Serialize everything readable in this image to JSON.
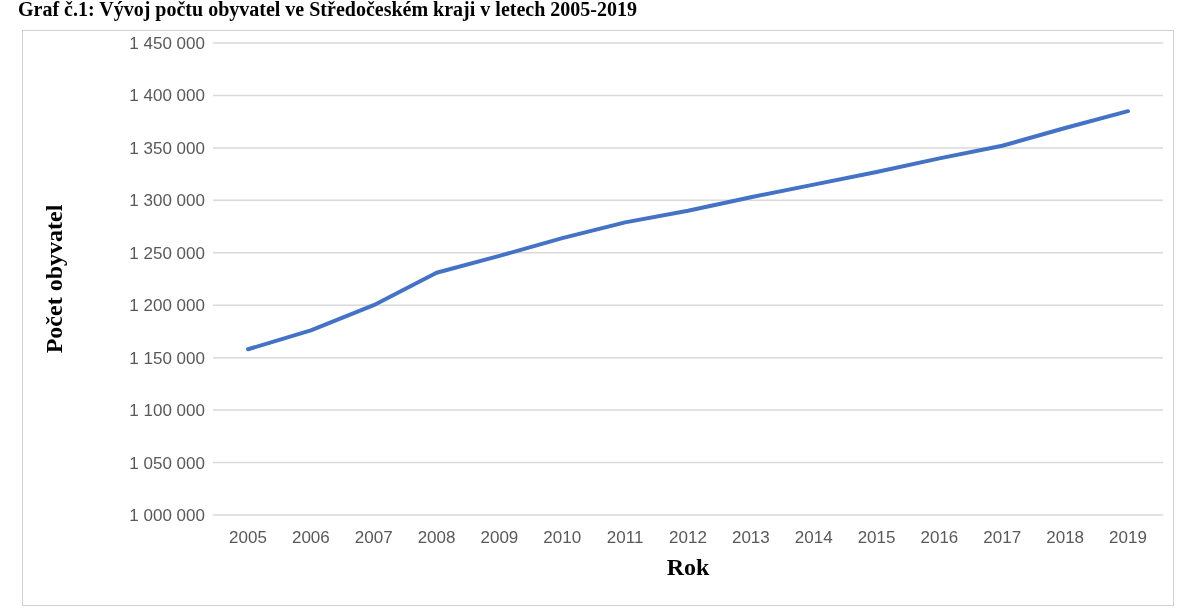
{
  "chart_data": {
    "type": "line",
    "title": "Graf č.1: Vývoj počtu obyvatel ve Středočeském kraji v letech 2005-2019",
    "xlabel": "Rok",
    "ylabel": "Počet obyvatel",
    "categories": [
      "2005",
      "2006",
      "2007",
      "2008",
      "2009",
      "2010",
      "2011",
      "2012",
      "2013",
      "2014",
      "2015",
      "2016",
      "2017",
      "2018",
      "2019"
    ],
    "series": [
      {
        "color": "#4472c4",
        "values": [
          1158000,
          1176000,
          1200000,
          1231000,
          1247000,
          1264000,
          1279000,
          1290000,
          1303000,
          1315000,
          1327000,
          1340000,
          1352000,
          1369000,
          1385000
        ]
      }
    ],
    "ylim": [
      1000000,
      1450000
    ],
    "yticks": [
      1000000,
      1050000,
      1100000,
      1150000,
      1200000,
      1250000,
      1300000,
      1350000,
      1400000,
      1450000
    ],
    "grid": "y",
    "legend": false,
    "marker": "none",
    "line_style": "solid"
  }
}
